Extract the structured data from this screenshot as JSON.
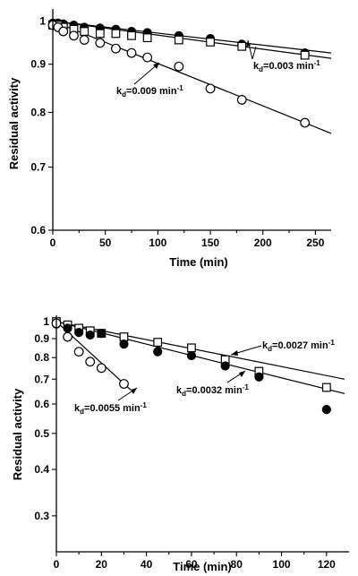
{
  "chart_data": [
    {
      "type": "scatter",
      "xlabel": "Time (min)",
      "ylabel": "Residual activity",
      "y_scale": "log",
      "xlim": [
        0,
        265
      ],
      "ylim": [
        0.6,
        1.03
      ],
      "x_ticks": [
        0,
        50,
        100,
        150,
        200,
        250
      ],
      "x_tick_labels": [
        "0",
        "50",
        "100",
        "150",
        "200",
        "250"
      ],
      "y_ticks": [
        0.6,
        0.7,
        0.8,
        0.9,
        1.0
      ],
      "y_tick_labels": [
        "0.6",
        "0.7",
        "0.8",
        "0.9",
        "1"
      ],
      "series": [
        {
          "marker": "filled-circle",
          "x": [
            0,
            5,
            10,
            20,
            30,
            45,
            60,
            75,
            90,
            120,
            150,
            180,
            240
          ],
          "y": [
            0.995,
            0.995,
            0.993,
            0.99,
            0.985,
            0.983,
            0.98,
            0.975,
            0.972,
            0.965,
            0.958,
            0.945,
            0.925
          ]
        },
        {
          "marker": "open-square",
          "x": [
            0,
            5,
            10,
            20,
            30,
            45,
            60,
            75,
            90,
            120,
            150,
            180,
            240
          ],
          "y": [
            0.99,
            0.99,
            0.985,
            0.98,
            0.975,
            0.97,
            0.97,
            0.965,
            0.96,
            0.955,
            0.95,
            0.94,
            0.92
          ]
        },
        {
          "marker": "open-circle",
          "x": [
            0,
            5,
            10,
            20,
            30,
            45,
            60,
            75,
            90,
            120,
            150,
            180,
            240
          ],
          "y": [
            0.99,
            0.985,
            0.975,
            0.965,
            0.955,
            0.948,
            0.935,
            0.925,
            0.915,
            0.895,
            0.848,
            0.825,
            0.78
          ]
        }
      ],
      "fit_lines": [
        {
          "x": [
            0,
            265
          ],
          "y": [
            1.0,
            0.925
          ]
        },
        {
          "x": [
            0,
            265
          ],
          "y": [
            1.0,
            0.913
          ]
        },
        {
          "x": [
            0,
            265
          ],
          "y": [
            1.0,
            0.76
          ]
        }
      ],
      "annotations": [
        {
          "main": "k",
          "sub": "d",
          "text": "=0.003 min",
          "sup": "-1"
        },
        {
          "main": "k",
          "sub": "d",
          "text": "=0.009 min",
          "sup": "-1"
        }
      ]
    },
    {
      "type": "scatter",
      "xlabel": "Time (min)",
      "ylabel": "Residual activity",
      "y_scale": "log",
      "xlim": [
        0,
        130
      ],
      "ylim": [
        0.24,
        1.04
      ],
      "x_ticks": [
        0,
        20,
        40,
        60,
        80,
        100,
        120
      ],
      "x_tick_labels": [
        "0",
        "20",
        "40",
        "60",
        "80",
        "100",
        "120"
      ],
      "y_ticks": [
        0.3,
        0.4,
        0.5,
        0.6,
        0.7,
        0.8,
        0.9,
        1.0
      ],
      "y_tick_labels": [
        "0.3",
        "0.4",
        "0.5",
        "0.6",
        "0.7",
        "0.8",
        "0.9",
        "1"
      ],
      "series": [
        {
          "marker": "open-square",
          "x": [
            0,
            5,
            10,
            15,
            20,
            30,
            45,
            60,
            75,
            90,
            120
          ],
          "y": [
            1.0,
            0.98,
            0.96,
            0.945,
            0.93,
            0.91,
            0.88,
            0.85,
            0.79,
            0.735,
            0.665
          ]
        },
        {
          "marker": "filled-circle",
          "x": [
            0,
            5,
            10,
            15,
            20,
            30,
            45,
            60,
            75,
            90,
            120
          ],
          "y": [
            0.985,
            0.96,
            0.935,
            0.92,
            0.93,
            0.87,
            0.83,
            0.81,
            0.76,
            0.71,
            0.58
          ]
        },
        {
          "marker": "open-circle",
          "x": [
            0,
            5,
            10,
            15,
            20,
            30
          ],
          "y": [
            0.99,
            0.91,
            0.83,
            0.78,
            0.75,
            0.68
          ]
        }
      ],
      "fit_lines": [
        {
          "x": [
            0,
            128
          ],
          "y": [
            1.0,
            0.7
          ]
        },
        {
          "x": [
            0,
            128
          ],
          "y": [
            1.0,
            0.64
          ]
        },
        {
          "x": [
            0,
            33
          ],
          "y": [
            1.0,
            0.655
          ]
        }
      ],
      "annotations": [
        {
          "main": "k",
          "sub": "d",
          "text": "=0.0027 min",
          "sup": "-1"
        },
        {
          "main": "k",
          "sub": "d",
          "text": "=0.0032 min",
          "sup": "-1"
        },
        {
          "main": "k",
          "sub": "d",
          "text": "=0.0055 min",
          "sup": "-1"
        }
      ]
    }
  ]
}
